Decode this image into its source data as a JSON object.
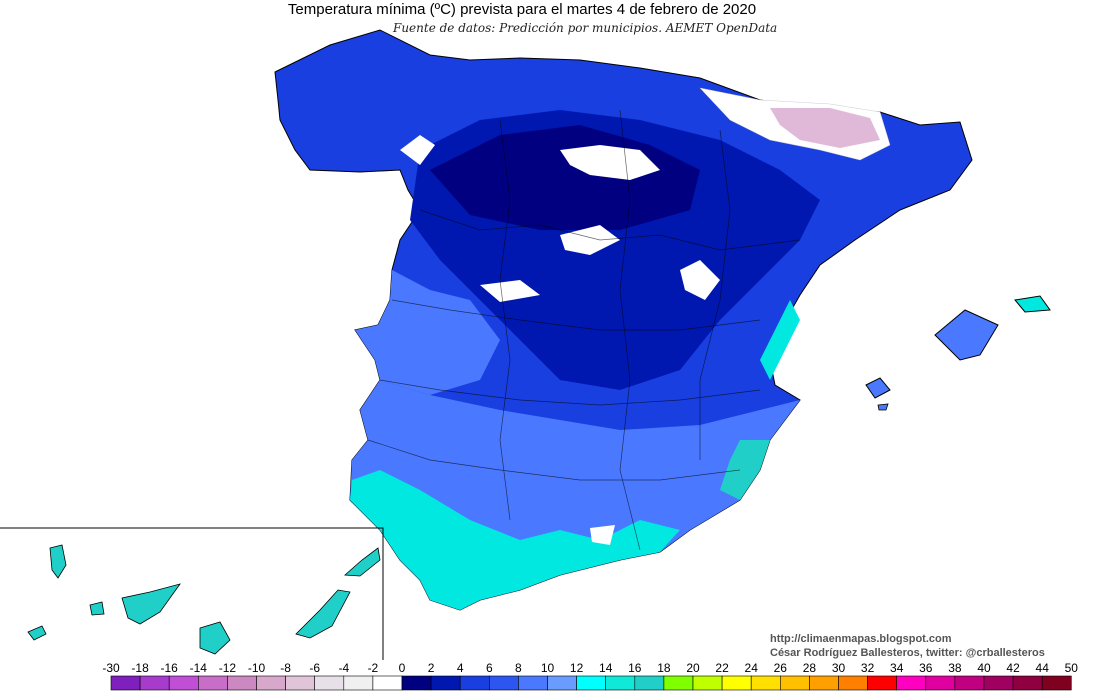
{
  "header": {
    "title": "Temperatura mínima (ºC) prevista para el martes 4 de febrero de 2020",
    "source": "Fuente de datos: Predicción por municipios. AEMET OpenData"
  },
  "credits": {
    "blog": "http://climaenmapas.blogspot.com",
    "author": "César Rodríguez Ballesteros, twitter: @crballesteros"
  },
  "colors": {
    "white": "#ffffff",
    "navy": "#000080",
    "dark_blue": "#0018b0",
    "mid_blue": "#1a3fe0",
    "light_blue": "#4a78ff",
    "pale_blue": "#6a9cff",
    "cyan": "#00ffff",
    "teal": "#20d0c8",
    "pink_snow": "#e0b8d8"
  },
  "legend": {
    "labels": [
      "-30",
      "-18",
      "-16",
      "-14",
      "-12",
      "-10",
      "-8",
      "-6",
      "-4",
      "-2",
      "0",
      "2",
      "4",
      "6",
      "8",
      "10",
      "12",
      "14",
      "16",
      "18",
      "20",
      "22",
      "24",
      "26",
      "28",
      "30",
      "32",
      "34",
      "36",
      "38",
      "40",
      "42",
      "44",
      "50"
    ],
    "colors": [
      "#7e1fbe",
      "#a73ccc",
      "#c04fd6",
      "#c86ec8",
      "#cc88c0",
      "#d8a8cc",
      "#e0c4d8",
      "#e8e0e8",
      "#f0f0f0",
      "#ffffff",
      "#000080",
      "#0018b0",
      "#1a3fe0",
      "#2d55f0",
      "#4a78ff",
      "#6a9cff",
      "#00ffff",
      "#10e8d8",
      "#20d0c8",
      "#80ff00",
      "#c0ff00",
      "#ffff00",
      "#ffe000",
      "#ffc000",
      "#ffa000",
      "#ff8000",
      "#ff0000",
      "#ff00c0",
      "#e000a0",
      "#c00080",
      "#a00060",
      "#900040",
      "#800020"
    ]
  }
}
